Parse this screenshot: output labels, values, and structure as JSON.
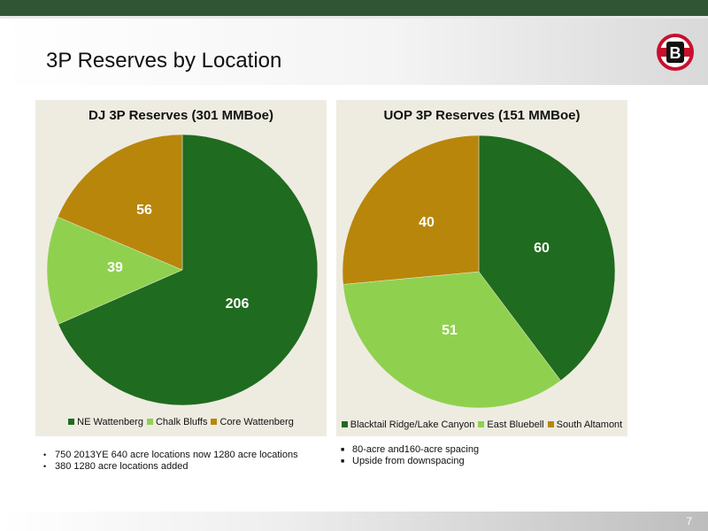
{
  "slide": {
    "title": "3P Reserves by Location",
    "page_number": "7",
    "logo_letter": "B"
  },
  "colors": {
    "top_bar": "#2f5535",
    "panel_bg": "#eeece1",
    "dark_green": "#1f6b1f",
    "light_green": "#8fd14f",
    "gold": "#b8860b",
    "logo_red": "#c8102e"
  },
  "chart_data": [
    {
      "type": "pie",
      "title": "DJ 3P Reserves (301 MMBoe)",
      "categories": [
        "NE Wattenberg",
        "Chalk Bluffs",
        "Core Wattenberg"
      ],
      "values": [
        206,
        39,
        56
      ],
      "colors": [
        "#1f6b1f",
        "#8fd14f",
        "#b8860b"
      ],
      "legend": "bottom"
    },
    {
      "type": "pie",
      "title": "UOP 3P Reserves (151 MMBoe)",
      "categories": [
        "Blacktail Ridge/Lake Canyon",
        "East Bluebell",
        "South Altamont"
      ],
      "values": [
        60,
        51,
        40
      ],
      "colors": [
        "#1f6b1f",
        "#8fd14f",
        "#b8860b"
      ],
      "legend": "bottom"
    }
  ],
  "notes_left": [
    "750 2013YE 640 acre locations now 1280 acre locations",
    "380 1280 acre locations added"
  ],
  "notes_right": [
    "80-acre and160-acre spacing",
    "Upside from downspacing"
  ]
}
